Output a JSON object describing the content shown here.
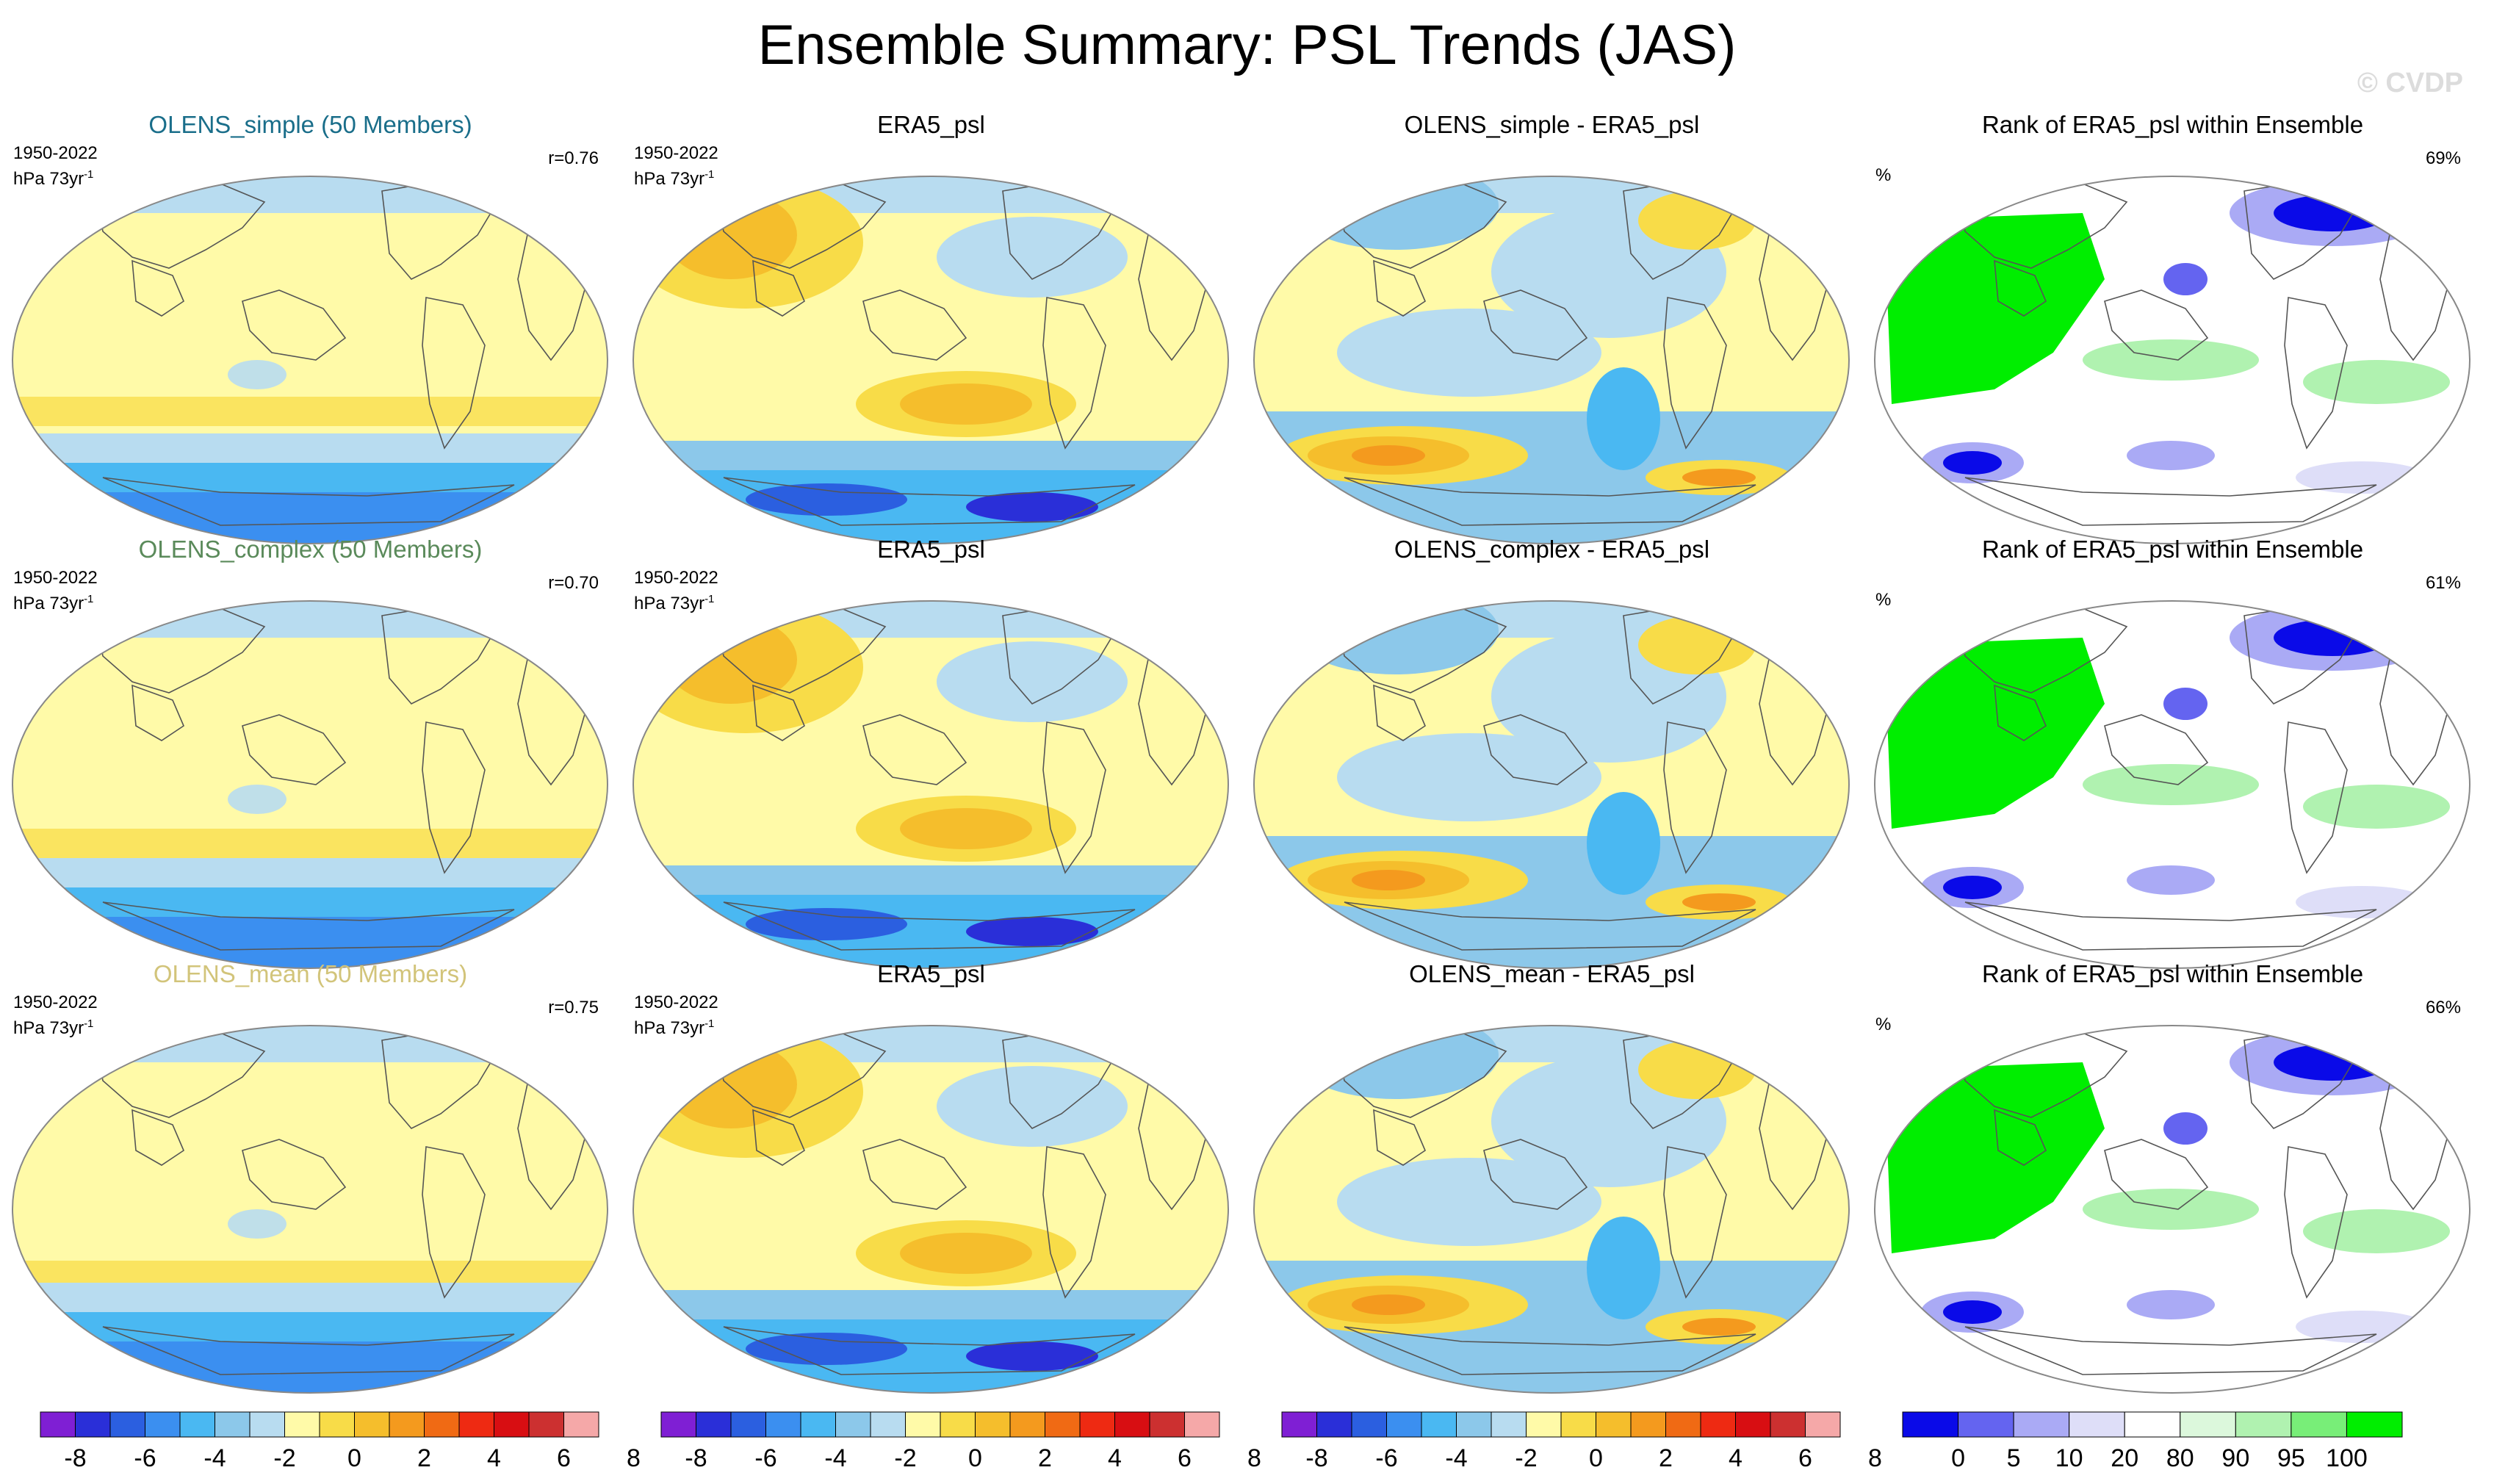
{
  "title": "Ensemble Summary: PSL Trends (JAS)",
  "watermark": "© CVDP",
  "colors": {
    "trend_scale": [
      "#7f1fd4",
      "#2a2fd8",
      "#2b5fe0",
      "#3b8ff0",
      "#4ab8f2",
      "#8cc8ea",
      "#b8dcf0",
      "#fffaa8",
      "#f8dc48",
      "#f5be2c",
      "#f49a1e",
      "#f06a14",
      "#ee2a12",
      "#d80e12",
      "#cc3030",
      "#f5a8a8"
    ],
    "rank_scale": [
      "#0a0ae8",
      "#6464f0",
      "#aaaaf5",
      "#dedef8",
      "#ffffff",
      "#dcf8dc",
      "#b0f2b0",
      "#78ee78",
      "#00ee00"
    ],
    "land_line": "#555555",
    "border": "#888888"
  },
  "rows": [
    {
      "model_title": "OLENS_simple (50 Members)",
      "model_title_color": "#1a6e8a",
      "period": "1950-2022",
      "units": "hPa 73yr",
      "units_exp": "-1",
      "pattern_corr": "r=0.76",
      "obs_title": "ERA5_psl",
      "diff_title": "OLENS_simple - ERA5_psl",
      "rank_title": "Rank of ERA5_psl within Ensemble",
      "rank_pct_label": "%",
      "rank_pct": "69%"
    },
    {
      "model_title": "OLENS_complex (50 Members)",
      "model_title_color": "#5a8a5a",
      "period": "1950-2022",
      "units": "hPa 73yr",
      "units_exp": "-1",
      "pattern_corr": "r=0.70",
      "obs_title": "ERA5_psl",
      "diff_title": "OLENS_complex - ERA5_psl",
      "rank_title": "Rank of ERA5_psl within Ensemble",
      "rank_pct_label": "%",
      "rank_pct": "61%"
    },
    {
      "model_title": "OLENS_mean (50 Members)",
      "model_title_color": "#d2c47a",
      "period": "1950-2022",
      "units": "hPa 73yr",
      "units_exp": "-1",
      "pattern_corr": "r=0.75",
      "obs_title": "ERA5_psl",
      "diff_title": "OLENS_mean - ERA5_psl",
      "rank_title": "Rank of ERA5_psl within Ensemble",
      "rank_pct_label": "%",
      "rank_pct": "66%"
    }
  ],
  "chart_data": {
    "type": "heatmap",
    "layout": "3 rows x 4 columns of global map panels",
    "columns": [
      "ensemble mean trend",
      "observed trend",
      "ensemble minus observed",
      "rank of observed within ensemble"
    ],
    "trend_units": "hPa 73yr-1",
    "trend_levels": [
      -8,
      -7,
      -6,
      -5,
      -4,
      -3,
      -2,
      -1,
      0,
      1,
      2,
      3,
      4,
      5,
      6,
      7,
      8
    ],
    "trend_tick_labels": [
      "-8",
      "-6",
      "-4",
      "-2",
      "0",
      "2",
      "4",
      "6",
      "8"
    ],
    "rank_levels": [
      0,
      5,
      10,
      20,
      80,
      90,
      95,
      100
    ],
    "rank_tick_labels": [
      "0",
      "5",
      "10",
      "20",
      "80",
      "90",
      "95",
      "100"
    ],
    "pattern_correlations": [
      0.76,
      0.7,
      0.75
    ],
    "rank_percent_in_range": [
      69,
      61,
      66
    ]
  }
}
